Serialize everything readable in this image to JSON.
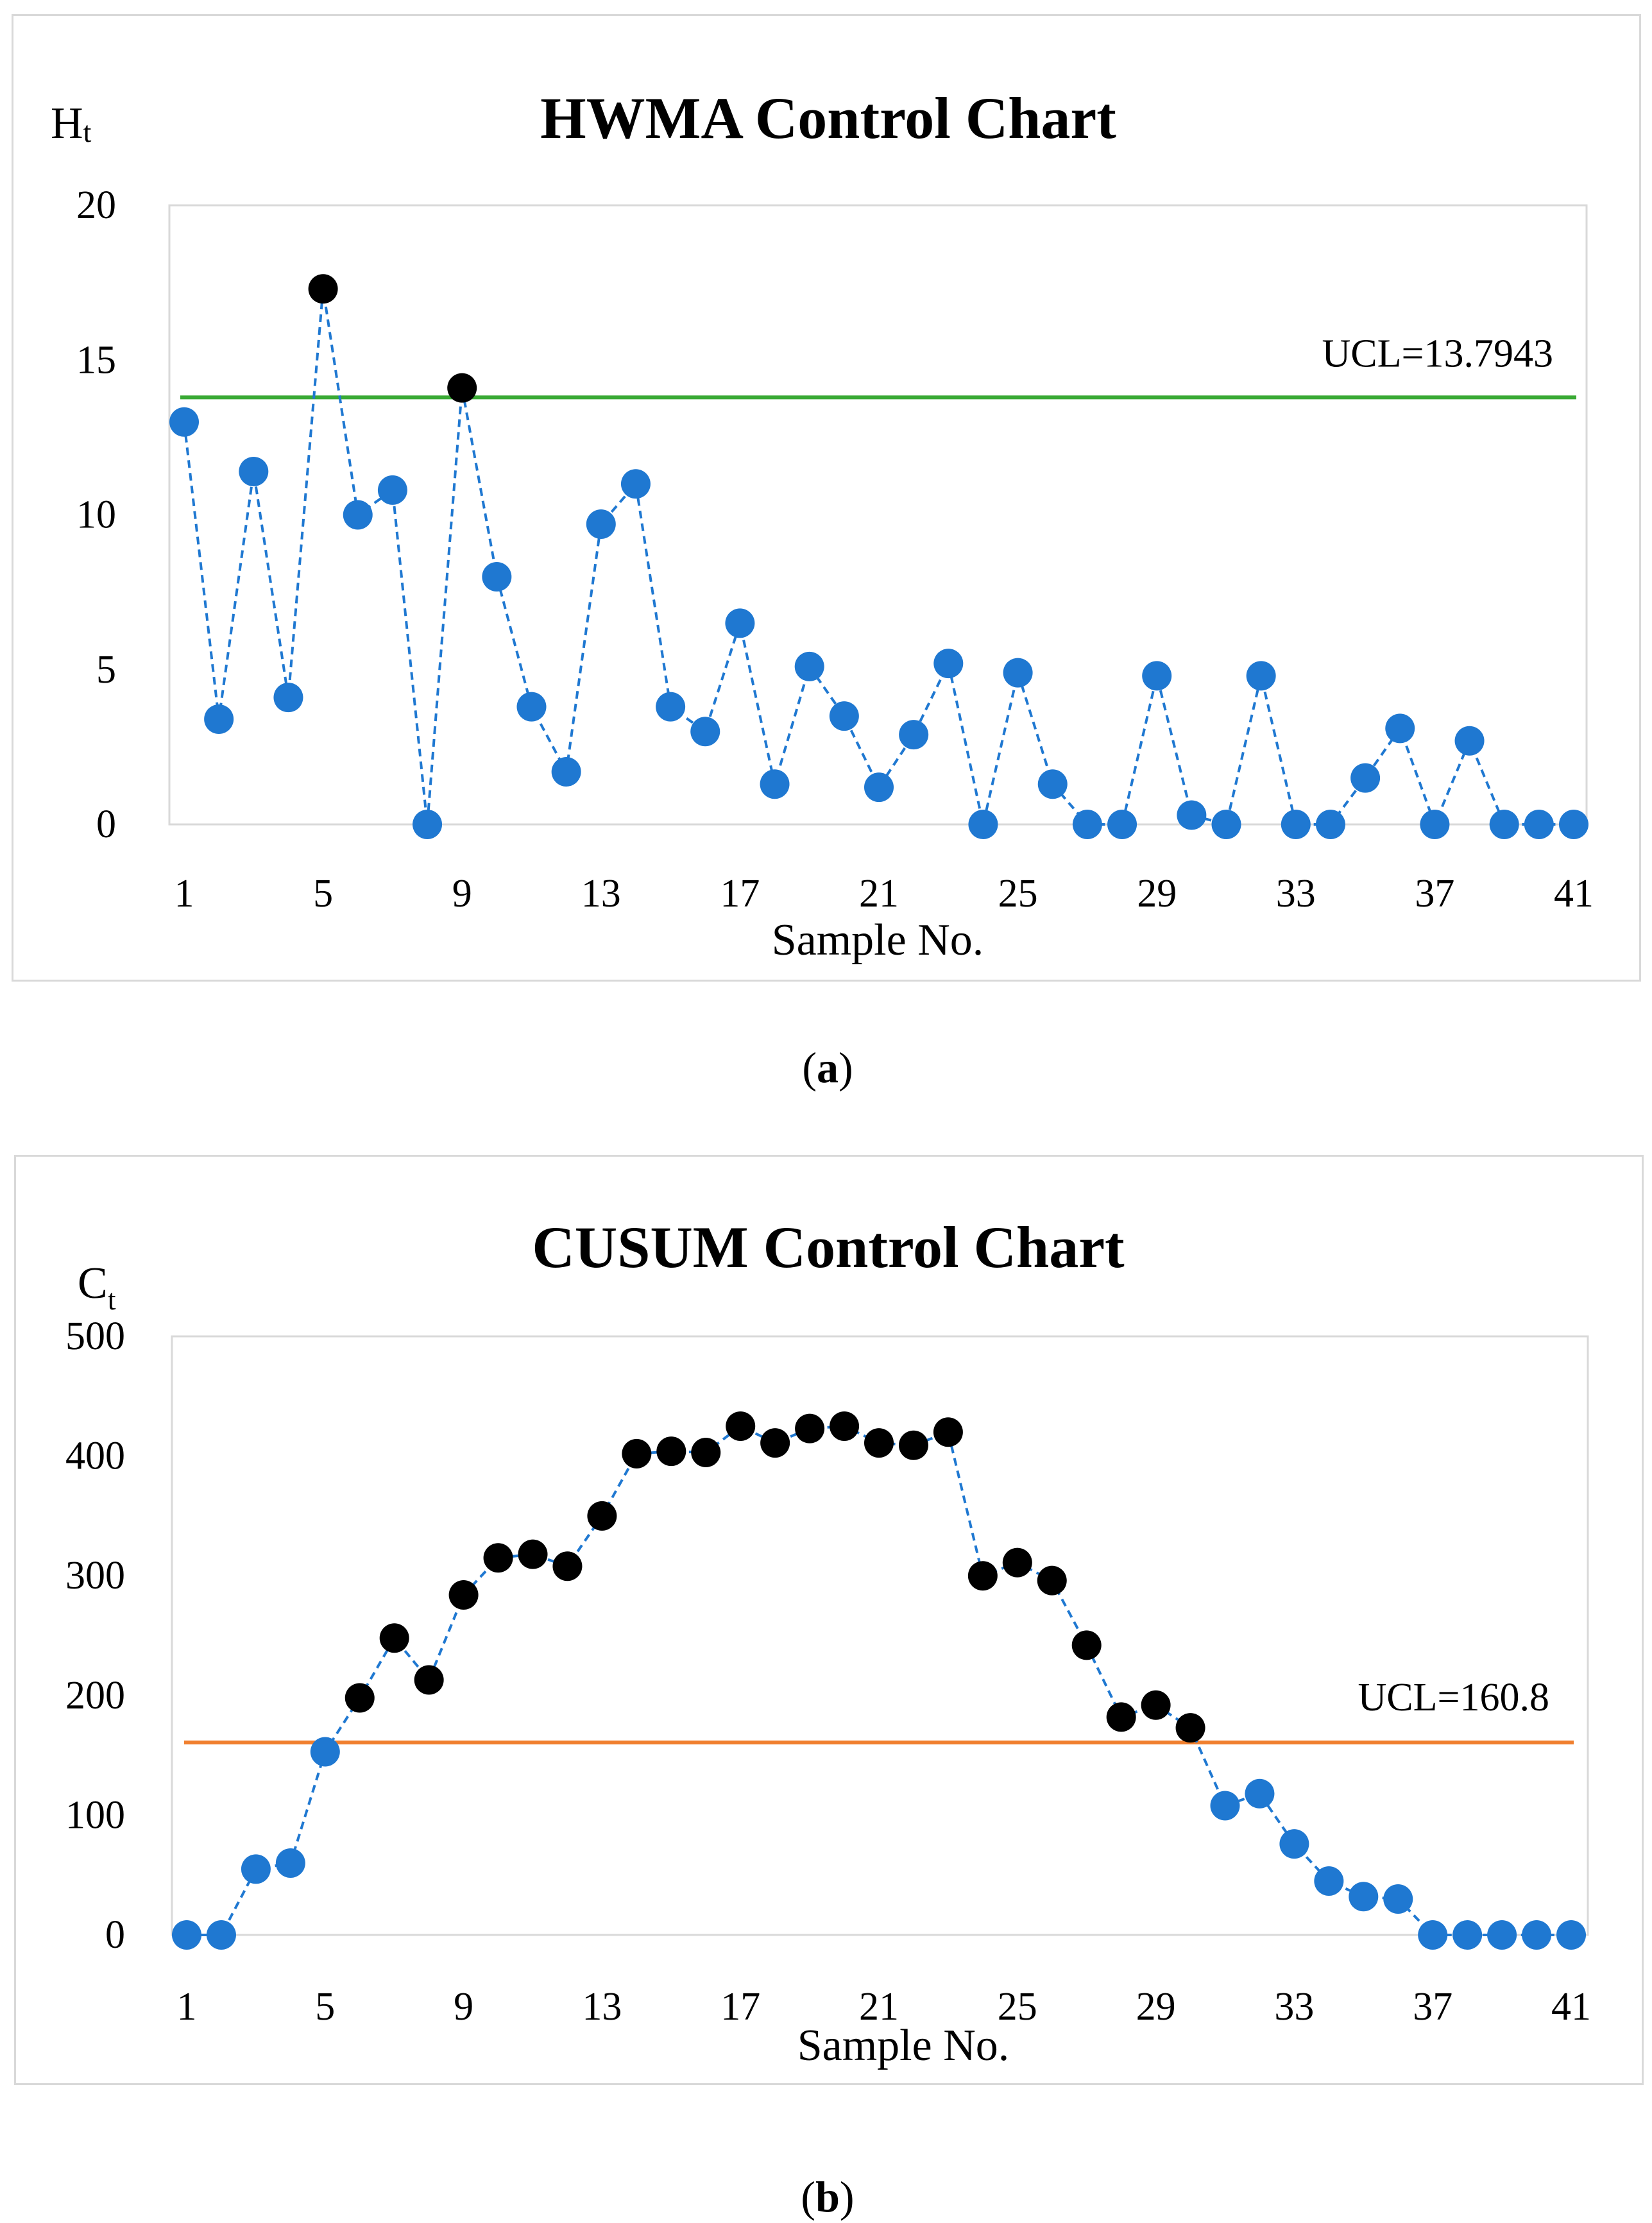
{
  "chart_data": [
    {
      "type": "line",
      "title": "HWMA Control Chart",
      "ylabel": "H",
      "ylabel_sub": "t",
      "xlabel": "Sample No.",
      "ylim": [
        0,
        20
      ],
      "y_ticks": [
        0,
        5,
        10,
        15,
        20
      ],
      "x_ticks": [
        1,
        5,
        9,
        13,
        17,
        21,
        25,
        29,
        33,
        37,
        41
      ],
      "x": [
        1,
        2,
        3,
        4,
        5,
        6,
        7,
        8,
        9,
        10,
        11,
        12,
        13,
        14,
        15,
        16,
        17,
        18,
        19,
        20,
        21,
        22,
        23,
        24,
        25,
        26,
        27,
        28,
        29,
        30,
        31,
        32,
        33,
        34,
        35,
        36,
        37,
        38,
        39,
        40,
        41
      ],
      "values": [
        13.0,
        3.4,
        11.4,
        4.1,
        17.3,
        10.0,
        10.8,
        0.0,
        14.1,
        8.0,
        3.8,
        1.7,
        9.7,
        11.0,
        3.8,
        3.0,
        6.5,
        1.3,
        5.1,
        3.5,
        1.2,
        2.9,
        5.2,
        0.0,
        4.9,
        1.3,
        0.0,
        0.0,
        4.8,
        0.3,
        0.0,
        4.8,
        0.0,
        0.0,
        1.5,
        3.1,
        0.0,
        2.7,
        0.0,
        0.0,
        0.0
      ],
      "ucl": 13.7943,
      "ucl_label": "UCL=13.7943",
      "ucl_color": "#3aaa35",
      "point_color": "#1f78d1",
      "out_of_control_color": "#000000",
      "line_color": "#1f78d1"
    },
    {
      "type": "line",
      "title": "CUSUM Control Chart",
      "ylabel": "C",
      "ylabel_sub": "t",
      "xlabel": "Sample No.",
      "ylim": [
        0,
        500
      ],
      "y_ticks": [
        0,
        100,
        200,
        300,
        400,
        500
      ],
      "x_ticks": [
        1,
        5,
        9,
        13,
        17,
        21,
        25,
        29,
        33,
        37,
        41
      ],
      "x": [
        1,
        2,
        3,
        4,
        5,
        6,
        7,
        8,
        9,
        10,
        11,
        12,
        13,
        14,
        15,
        16,
        17,
        18,
        19,
        20,
        21,
        22,
        23,
        24,
        25,
        26,
        27,
        28,
        29,
        30,
        31,
        32,
        33,
        34,
        35,
        36,
        37,
        38,
        39,
        40,
        41
      ],
      "values": [
        0,
        0,
        55,
        60,
        153,
        198,
        248,
        213,
        284,
        315,
        318,
        308,
        350,
        402,
        404,
        403,
        425,
        411,
        423,
        425,
        411,
        409,
        420,
        300,
        311,
        296,
        242,
        182,
        192,
        173,
        108,
        118,
        76,
        45,
        32,
        30,
        0,
        0,
        0,
        0,
        0
      ],
      "ucl": 160.8,
      "ucl_label": "UCL=160.8",
      "ucl_color": "#f07f2e",
      "point_color": "#1f78d1",
      "out_of_control_color": "#000000",
      "line_color": "#1f78d1"
    }
  ],
  "captions": {
    "a_letter": "a",
    "b_letter": "b",
    "open": "(",
    "close": ")"
  }
}
